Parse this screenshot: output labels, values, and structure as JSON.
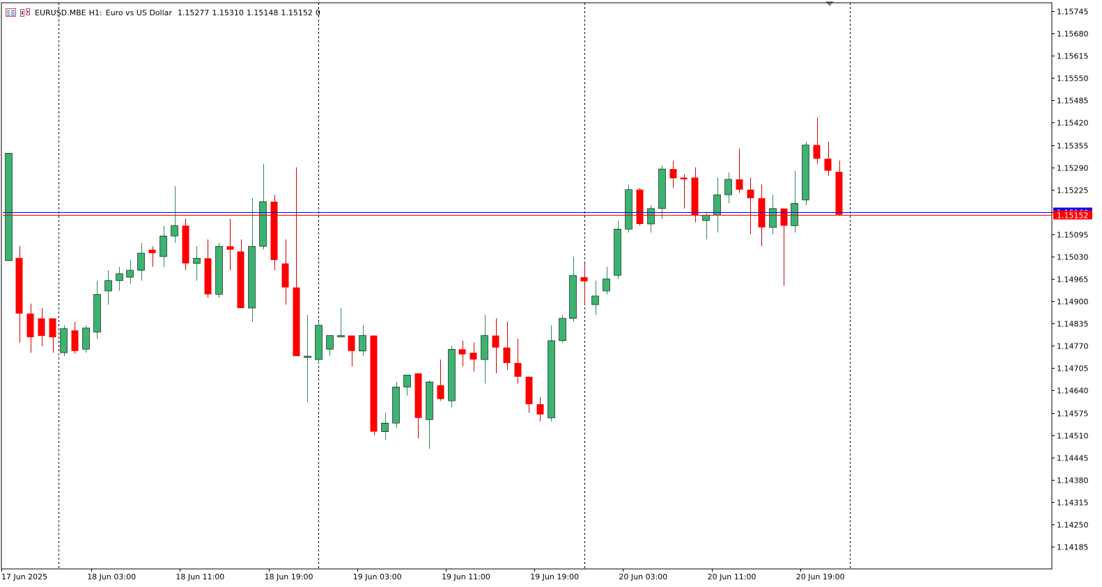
{
  "header": {
    "symbol": "EURUSD.MBE",
    "timeframe": "H1:",
    "description": "Euro vs US Dollar",
    "open": "1.15277",
    "high": "1.15310",
    "low": "1.15148",
    "close": "1.15152",
    "volume": "0",
    "icons": [
      "chart-list-icon",
      "symbol-chart-icon"
    ]
  },
  "colors": {
    "background": "#ffffff",
    "bull": "#3cb371",
    "bear": "#ff0000",
    "wick_bull": "#2e8b57",
    "wick_bear": "#d00000",
    "bid_line": "#0000ff",
    "ask_line": "#ff0000",
    "bid_label_bg": "#0000ff",
    "last_label_bg": "#ff0000",
    "axis": "#000000",
    "separator": "#000000"
  },
  "chart_data": {
    "type": "candlestick",
    "symbol": "EURUSD.MBE",
    "timeframe": "H1",
    "y_axis": {
      "ticks": [
        "1.15745",
        "1.15680",
        "1.15615",
        "1.15550",
        "1.15485",
        "1.15420",
        "1.15355",
        "1.15290",
        "1.15225",
        "1.15160",
        "1.15095",
        "1.15030",
        "1.14965",
        "1.14900",
        "1.14835",
        "1.14770",
        "1.14705",
        "1.14640",
        "1.14575",
        "1.14510",
        "1.14445",
        "1.14380",
        "1.14315",
        "1.14250",
        "1.14185"
      ],
      "min": 1.1412,
      "max": 1.158
    },
    "x_axis": {
      "labels": [
        "17 Jun 2025",
        "18 Jun 03:00",
        "18 Jun 11:00",
        "18 Jun 19:00",
        "19 Jun 03:00",
        "19 Jun 11:00",
        "19 Jun 19:00",
        "20 Jun 03:00",
        "20 Jun 11:00",
        "20 Jun 19:00"
      ],
      "label_bars": [
        0,
        8,
        16,
        24,
        32,
        40,
        48,
        56,
        64,
        72
      ]
    },
    "day_separators_bar": [
      5,
      28.5,
      52.5,
      76.5
    ],
    "price_lines": [
      {
        "label": "1.15160",
        "value": 1.1516,
        "kind": "bid"
      },
      {
        "label": "1.15152",
        "value": 1.15152,
        "kind": "last"
      }
    ],
    "candles": [
      {
        "o": 1.15018,
        "h": 1.15331,
        "l": 1.15018,
        "c": 1.15331
      },
      {
        "o": 1.15026,
        "h": 1.15061,
        "l": 1.14779,
        "c": 1.14864
      },
      {
        "o": 1.14864,
        "h": 1.14893,
        "l": 1.1475,
        "c": 1.14795
      },
      {
        "o": 1.1485,
        "h": 1.1488,
        "l": 1.14769,
        "c": 1.14799
      },
      {
        "o": 1.1485,
        "h": 1.1485,
        "l": 1.1475,
        "c": 1.14795
      },
      {
        "o": 1.1475,
        "h": 1.1483,
        "l": 1.1474,
        "c": 1.1482
      },
      {
        "o": 1.14815,
        "h": 1.1484,
        "l": 1.14747,
        "c": 1.14755
      },
      {
        "o": 1.1476,
        "h": 1.1483,
        "l": 1.1475,
        "c": 1.14822
      },
      {
        "o": 1.1481,
        "h": 1.1496,
        "l": 1.1479,
        "c": 1.1492
      },
      {
        "o": 1.1493,
        "h": 1.1499,
        "l": 1.1489,
        "c": 1.1496
      },
      {
        "o": 1.1496,
        "h": 1.15,
        "l": 1.1493,
        "c": 1.1498
      },
      {
        "o": 1.1497,
        "h": 1.1502,
        "l": 1.1495,
        "c": 1.1499
      },
      {
        "o": 1.1499,
        "h": 1.1507,
        "l": 1.1496,
        "c": 1.1504
      },
      {
        "o": 1.1505,
        "h": 1.1506,
        "l": 1.15,
        "c": 1.1504
      },
      {
        "o": 1.1503,
        "h": 1.1512,
        "l": 1.15,
        "c": 1.1509
      },
      {
        "o": 1.1509,
        "h": 1.15235,
        "l": 1.1507,
        "c": 1.1512
      },
      {
        "o": 1.1512,
        "h": 1.1514,
        "l": 1.1499,
        "c": 1.1501
      },
      {
        "o": 1.1501,
        "h": 1.1506,
        "l": 1.1496,
        "c": 1.15025
      },
      {
        "o": 1.15025,
        "h": 1.1508,
        "l": 1.1491,
        "c": 1.1492
      },
      {
        "o": 1.1492,
        "h": 1.1507,
        "l": 1.1491,
        "c": 1.1506
      },
      {
        "o": 1.1506,
        "h": 1.1514,
        "l": 1.1499,
        "c": 1.1505
      },
      {
        "o": 1.15045,
        "h": 1.1508,
        "l": 1.1488,
        "c": 1.1488
      },
      {
        "o": 1.1488,
        "h": 1.152,
        "l": 1.1484,
        "c": 1.1506
      },
      {
        "o": 1.1506,
        "h": 1.153,
        "l": 1.1505,
        "c": 1.1519
      },
      {
        "o": 1.1519,
        "h": 1.1521,
        "l": 1.1499,
        "c": 1.1502
      },
      {
        "o": 1.1501,
        "h": 1.1508,
        "l": 1.1489,
        "c": 1.1494
      },
      {
        "o": 1.1494,
        "h": 1.1529,
        "l": 1.1474,
        "c": 1.1474
      },
      {
        "o": 1.1474,
        "h": 1.1486,
        "l": 1.14605,
        "c": 1.1474
      },
      {
        "o": 1.1473,
        "h": 1.1484,
        "l": 1.1472,
        "c": 1.1483
      },
      {
        "o": 1.1476,
        "h": 1.148,
        "l": 1.1474,
        "c": 1.148
      },
      {
        "o": 1.148,
        "h": 1.1488,
        "l": 1.148,
        "c": 1.148
      },
      {
        "o": 1.148,
        "h": 1.148,
        "l": 1.1471,
        "c": 1.14755
      },
      {
        "o": 1.14755,
        "h": 1.1483,
        "l": 1.1474,
        "c": 1.148
      },
      {
        "o": 1.148,
        "h": 1.148,
        "l": 1.1451,
        "c": 1.1452
      },
      {
        "o": 1.1452,
        "h": 1.14575,
        "l": 1.14495,
        "c": 1.14545
      },
      {
        "o": 1.14545,
        "h": 1.14665,
        "l": 1.1453,
        "c": 1.1465
      },
      {
        "o": 1.1465,
        "h": 1.14685,
        "l": 1.14625,
        "c": 1.14685
      },
      {
        "o": 1.1469,
        "h": 1.1469,
        "l": 1.145,
        "c": 1.1456
      },
      {
        "o": 1.14555,
        "h": 1.1467,
        "l": 1.1447,
        "c": 1.14665
      },
      {
        "o": 1.14655,
        "h": 1.1473,
        "l": 1.1461,
        "c": 1.14615
      },
      {
        "o": 1.1461,
        "h": 1.1477,
        "l": 1.1459,
        "c": 1.1476
      },
      {
        "o": 1.1476,
        "h": 1.14785,
        "l": 1.1471,
        "c": 1.14745
      },
      {
        "o": 1.1475,
        "h": 1.1478,
        "l": 1.14695,
        "c": 1.1473
      },
      {
        "o": 1.1473,
        "h": 1.1486,
        "l": 1.1466,
        "c": 1.148
      },
      {
        "o": 1.148,
        "h": 1.1485,
        "l": 1.1469,
        "c": 1.14765
      },
      {
        "o": 1.14765,
        "h": 1.1484,
        "l": 1.147,
        "c": 1.1472
      },
      {
        "o": 1.1472,
        "h": 1.1479,
        "l": 1.1466,
        "c": 1.1468
      },
      {
        "o": 1.1468,
        "h": 1.1468,
        "l": 1.14575,
        "c": 1.146
      },
      {
        "o": 1.146,
        "h": 1.1462,
        "l": 1.1455,
        "c": 1.1457
      },
      {
        "o": 1.1456,
        "h": 1.1483,
        "l": 1.1455,
        "c": 1.14785
      },
      {
        "o": 1.14785,
        "h": 1.1486,
        "l": 1.1478,
        "c": 1.1485
      },
      {
        "o": 1.1485,
        "h": 1.1503,
        "l": 1.1484,
        "c": 1.14975
      },
      {
        "o": 1.1497,
        "h": 1.1501,
        "l": 1.1489,
        "c": 1.14958
      },
      {
        "o": 1.1489,
        "h": 1.1496,
        "l": 1.1486,
        "c": 1.14915
      },
      {
        "o": 1.1493,
        "h": 1.15,
        "l": 1.1492,
        "c": 1.14965
      },
      {
        "o": 1.14975,
        "h": 1.15135,
        "l": 1.14965,
        "c": 1.1511
      },
      {
        "o": 1.1511,
        "h": 1.1524,
        "l": 1.151,
        "c": 1.15225
      },
      {
        "o": 1.15225,
        "h": 1.1523,
        "l": 1.1512,
        "c": 1.15125
      },
      {
        "o": 1.15125,
        "h": 1.1518,
        "l": 1.151,
        "c": 1.1517
      },
      {
        "o": 1.1517,
        "h": 1.15295,
        "l": 1.1514,
        "c": 1.15285
      },
      {
        "o": 1.15285,
        "h": 1.1531,
        "l": 1.1523,
        "c": 1.15258
      },
      {
        "o": 1.1526,
        "h": 1.1527,
        "l": 1.1517,
        "c": 1.15255
      },
      {
        "o": 1.1526,
        "h": 1.1529,
        "l": 1.1513,
        "c": 1.1515
      },
      {
        "o": 1.15135,
        "h": 1.1516,
        "l": 1.1508,
        "c": 1.1515
      },
      {
        "o": 1.1515,
        "h": 1.1526,
        "l": 1.151,
        "c": 1.1521
      },
      {
        "o": 1.1521,
        "h": 1.15275,
        "l": 1.15185,
        "c": 1.15255
      },
      {
        "o": 1.15255,
        "h": 1.15345,
        "l": 1.15215,
        "c": 1.15225
      },
      {
        "o": 1.15225,
        "h": 1.1526,
        "l": 1.15095,
        "c": 1.152
      },
      {
        "o": 1.152,
        "h": 1.1524,
        "l": 1.1506,
        "c": 1.15115
      },
      {
        "o": 1.15115,
        "h": 1.1521,
        "l": 1.15095,
        "c": 1.1517
      },
      {
        "o": 1.1517,
        "h": 1.1517,
        "l": 1.14945,
        "c": 1.1512
      },
      {
        "o": 1.1512,
        "h": 1.1528,
        "l": 1.151,
        "c": 1.15185
      },
      {
        "o": 1.15195,
        "h": 1.15365,
        "l": 1.1518,
        "c": 1.15355
      },
      {
        "o": 1.15355,
        "h": 1.15435,
        "l": 1.153,
        "c": 1.15315
      },
      {
        "o": 1.15315,
        "h": 1.15365,
        "l": 1.15265,
        "c": 1.1528
      },
      {
        "o": 1.15277,
        "h": 1.1531,
        "l": 1.15148,
        "c": 1.15152
      }
    ]
  }
}
